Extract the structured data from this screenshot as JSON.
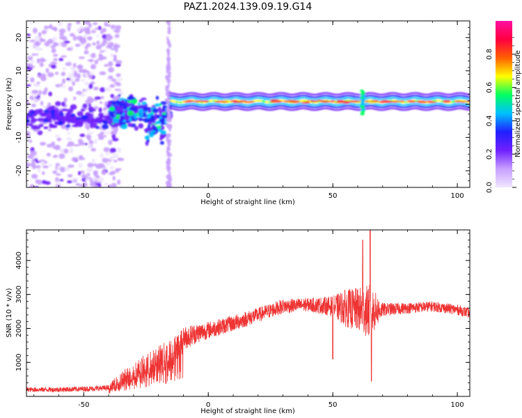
{
  "figure": {
    "title": "PAZ1.2024.139.09.19.G14"
  },
  "chart_data": [
    {
      "type": "heatmap",
      "xlabel": "Height of straight line (km)",
      "ylabel": "Frequency (Hz)",
      "xlim": [
        -73,
        105
      ],
      "ylim": [
        -25,
        25
      ],
      "xticks": [
        -50,
        0,
        50,
        100
      ],
      "yticks": [
        -20,
        -10,
        0,
        10,
        20
      ],
      "grid": false,
      "colorbar": {
        "label": "Normalized spectral amplitude",
        "range": [
          0,
          1
        ],
        "ticks": [
          "0.0",
          "0.2",
          "0.4",
          "0.6",
          "0.8"
        ],
        "tick_values": [
          0,
          0.2,
          0.4,
          0.6,
          0.8
        ],
        "colormap": [
          "#f0e6ff",
          "#c8a0ff",
          "#7020ff",
          "#2020ff",
          "#00c0ff",
          "#00ff60",
          "#ffff00",
          "#ff6000",
          "#ff0040",
          "#ff10a0"
        ]
      },
      "features": {
        "main_ridge": {
          "x_range": [
            -15,
            105
          ],
          "frequency": 0.8,
          "amplitude": 0.9
        },
        "noisy_region": {
          "x_range": [
            -73,
            -35
          ],
          "frequency_range": [
            -25,
            25
          ],
          "amplitude": 0.15
        },
        "transition_cluster": {
          "x_range": [
            -40,
            -15
          ],
          "frequency_range": [
            -12,
            3
          ],
          "amplitude": 0.5
        },
        "vertical_streak": {
          "x": -16,
          "frequency_range": [
            -25,
            25
          ]
        },
        "spike": {
          "x": 62,
          "frequency_range": [
            -3,
            4
          ]
        }
      }
    },
    {
      "type": "line",
      "xlabel": "Height of straight line (km)",
      "ylabel": "SNR (10 * v/v)",
      "xlim": [
        -73,
        105
      ],
      "ylim": [
        0,
        4900
      ],
      "xticks": [
        -50,
        0,
        50,
        100
      ],
      "yticks": [
        1000,
        2000,
        3000,
        4000
      ],
      "grid": false,
      "series_color": "#ee3333",
      "envelope": {
        "x": [
          -73,
          -60,
          -50,
          -40,
          -35,
          -30,
          -25,
          -20,
          -15,
          -12,
          -10,
          -5,
          0,
          10,
          20,
          30,
          40,
          50,
          55,
          60,
          65,
          70,
          80,
          90,
          100,
          105
        ],
        "y": [
          200,
          200,
          220,
          250,
          450,
          650,
          850,
          1050,
          1200,
          1500,
          1700,
          1850,
          1950,
          2150,
          2400,
          2650,
          2700,
          2650,
          2600,
          2550,
          2500,
          2550,
          2600,
          2650,
          2550,
          2450
        ]
      },
      "noise_amplitude": {
        "x": [
          -73,
          -40,
          -35,
          -20,
          -15,
          -10,
          0,
          20,
          40,
          50,
          55,
          60,
          65,
          70,
          80,
          105
        ],
        "y": [
          70,
          80,
          300,
          450,
          500,
          350,
          250,
          220,
          200,
          300,
          550,
          650,
          800,
          200,
          160,
          150
        ]
      },
      "peaks": [
        {
          "x": 62,
          "y": 4600
        },
        {
          "x": 65,
          "y": 4900
        },
        {
          "x": 65.5,
          "y": 450
        },
        {
          "x": 50,
          "y": 1100
        }
      ]
    }
  ]
}
